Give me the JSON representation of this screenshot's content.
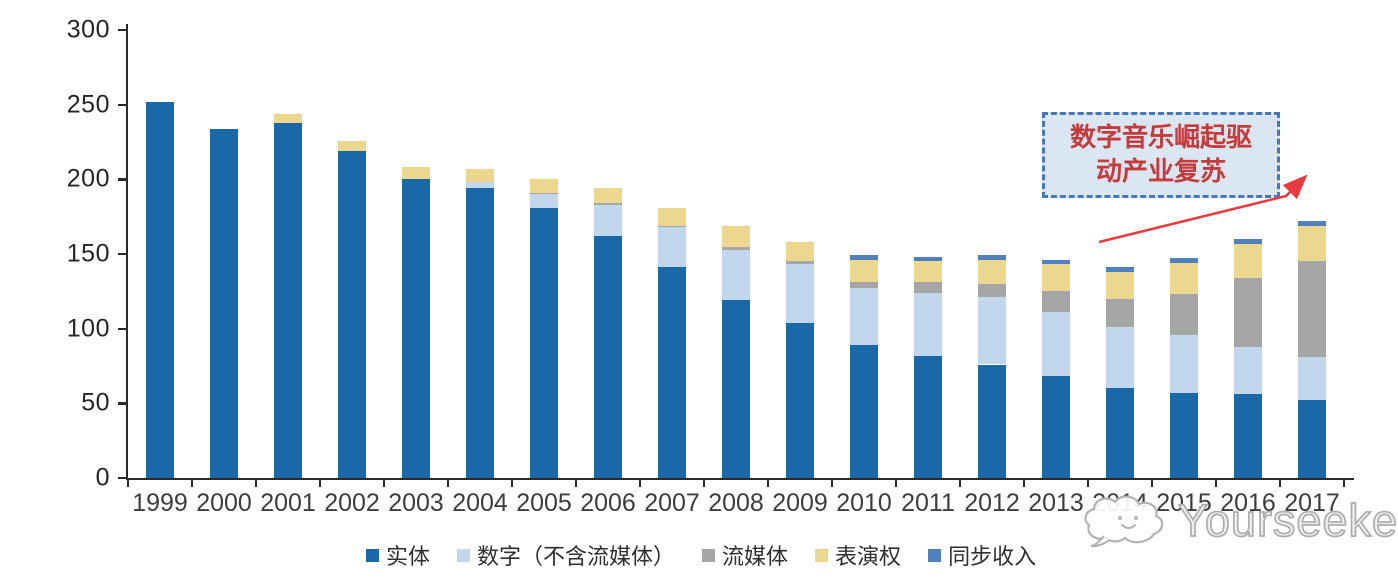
{
  "chart_data": {
    "type": "bar",
    "stacked": true,
    "title": "",
    "xlabel": "",
    "ylabel": "",
    "grid": false,
    "legend_position": "bottom",
    "ylim": [
      0,
      300
    ],
    "yticks": [
      0,
      50,
      100,
      150,
      200,
      250,
      300
    ],
    "categories": [
      "1999",
      "2000",
      "2001",
      "2002",
      "2003",
      "2004",
      "2005",
      "2006",
      "2007",
      "2008",
      "2009",
      "2010",
      "2011",
      "2012",
      "2013",
      "2014",
      "2015",
      "2016",
      "2017"
    ],
    "series": [
      {
        "name": "实体",
        "color": "#1a68a7",
        "values": [
          252,
          234,
          238,
          219,
          200,
          194,
          181,
          162,
          141,
          119,
          104,
          89,
          82,
          76,
          68,
          60,
          57,
          56,
          52
        ]
      },
      {
        "name": "数字（不含流媒体）",
        "color": "#c3d7ec",
        "values": [
          0,
          0,
          0,
          0,
          0,
          4,
          9,
          21,
          27,
          34,
          39,
          38,
          42,
          45,
          43,
          41,
          39,
          32,
          29
        ]
      },
      {
        "name": "流媒体",
        "color": "#a6a6a6",
        "values": [
          0,
          0,
          0,
          0,
          0,
          0,
          1,
          1,
          1,
          2,
          2,
          4,
          7,
          9,
          14,
          19,
          27,
          46,
          64
        ]
      },
      {
        "name": "表演权",
        "color": "#ecd78f",
        "values": [
          0,
          0,
          6,
          7,
          8,
          9,
          9,
          10,
          12,
          14,
          13,
          15,
          14,
          16,
          18,
          18,
          21,
          23,
          24
        ]
      },
      {
        "name": "同步收入",
        "color": "#4e81bd",
        "values": [
          0,
          0,
          0,
          0,
          0,
          0,
          0,
          0,
          0,
          0,
          0,
          3,
          3,
          3,
          3,
          3,
          3,
          3,
          3
        ]
      }
    ]
  },
  "annotation": {
    "text": "数字音乐崛起驱\n动产业复苏",
    "text_color": "#c63a3a",
    "box_fill": "#dbe6f3",
    "box_border_color": "#4677bd",
    "arrow_color": "#e83a3f"
  },
  "watermark": {
    "text": "Yourseeker",
    "logo": "cloud-logo-icon",
    "color": "#adadad"
  },
  "axis": {
    "line_color": "#2b2b2b",
    "ytick_label_color": "#262626",
    "xtick_label_color": "#3d3d3d"
  }
}
